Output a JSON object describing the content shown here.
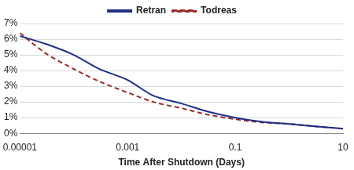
{
  "chart_data": {
    "type": "line",
    "x_label": "Time After Shutdown (Days)",
    "x": [
      1e-05,
      3e-05,
      0.0001,
      0.0003,
      0.001,
      0.003,
      0.01,
      0.03,
      0.1,
      0.3,
      1,
      3,
      10
    ],
    "series": [
      {
        "name": "Retran",
        "color": "#1f2e86",
        "line_style": "solid",
        "values": [
          6.2,
          5.7,
          5.0,
          4.1,
          3.4,
          2.4,
          1.9,
          1.4,
          1.0,
          0.75,
          0.6,
          0.45,
          0.3
        ]
      },
      {
        "name": "Todreas",
        "color": "#9b2a2a",
        "line_style": "dashed",
        "values": [
          6.4,
          5.1,
          4.1,
          3.3,
          2.6,
          2.0,
          1.6,
          1.2,
          0.9,
          0.7,
          0.6,
          0.45,
          0.3
        ]
      }
    ],
    "log": "x",
    "xlim": [
      1e-05,
      10
    ],
    "xticks": [
      1e-05,
      0.001,
      0.1,
      10
    ],
    "ylim": [
      0,
      7
    ],
    "yticks": [
      {
        "value": 0,
        "label": "0%"
      },
      {
        "value": 1,
        "label": "1%"
      },
      {
        "value": 2,
        "label": "2%"
      },
      {
        "value": 3,
        "label": "3%"
      },
      {
        "value": 4,
        "label": "4%"
      },
      {
        "value": 5,
        "label": "5%"
      },
      {
        "value": 6,
        "label": "6%"
      },
      {
        "value": 7,
        "label": "7%"
      }
    ],
    "grid": "y",
    "legend": "top"
  }
}
